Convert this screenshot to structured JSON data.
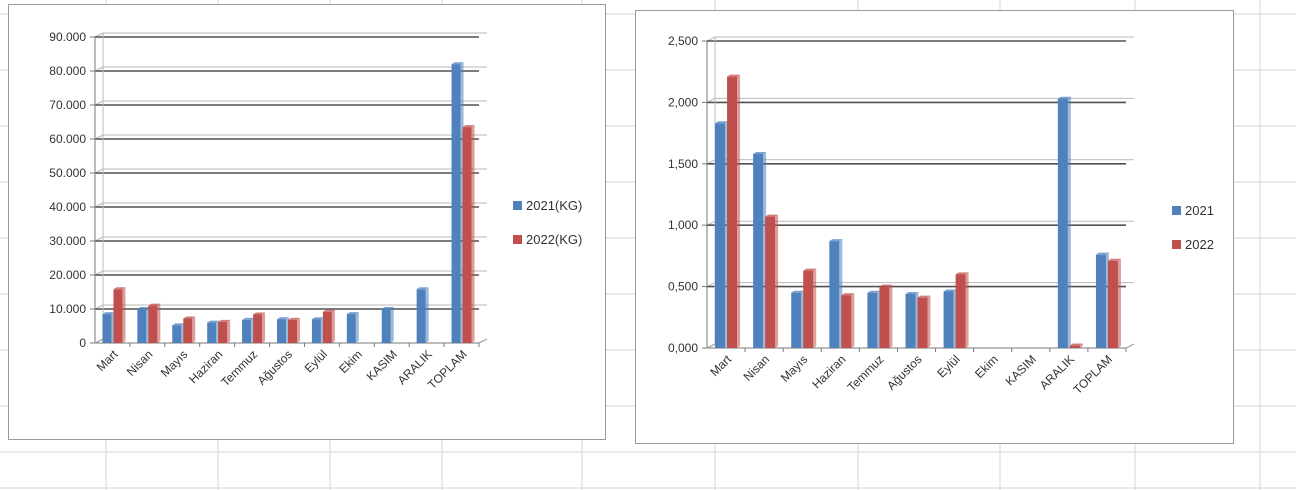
{
  "colors": {
    "series1": "#4f81bd",
    "series2": "#c0504d"
  },
  "chart_data": [
    {
      "type": "bar",
      "categories": [
        "Mart",
        "Nisan",
        "Mayıs",
        "Haziran",
        "Temmuz",
        "Ağustos",
        "Eylül",
        "Ekim",
        "KASIM",
        "ARALIK",
        "TOPLAM"
      ],
      "series": [
        {
          "name": "2021(KG)",
          "values": [
            8500,
            10000,
            5200,
            6000,
            6800,
            7000,
            7000,
            8500,
            10000,
            15800,
            82000
          ]
        },
        {
          "name": "2022(KG)",
          "values": [
            15800,
            11000,
            7200,
            6200,
            8400,
            6800,
            9200,
            null,
            null,
            null,
            63500
          ]
        }
      ],
      "yticks": [
        "0",
        "10.000",
        "20.000",
        "30.000",
        "40.000",
        "50.000",
        "60.000",
        "70.000",
        "80.000",
        "90.000"
      ],
      "ylim": [
        0,
        90000
      ],
      "legend_position": "right",
      "grid": true
    },
    {
      "type": "bar",
      "categories": [
        "Mart",
        "Nisan",
        "Mayıs",
        "Haziran",
        "Temmuz",
        "Ağustos",
        "Eylül",
        "Ekim",
        "KASIM",
        "ARALIK",
        "TOPLAM"
      ],
      "series": [
        {
          "name": "2021",
          "values": [
            1.83,
            1.58,
            0.45,
            0.87,
            0.45,
            0.44,
            0.46,
            null,
            null,
            2.03,
            0.76
          ]
        },
        {
          "name": "2022",
          "values": [
            2.21,
            1.07,
            0.63,
            0.43,
            0.5,
            0.41,
            0.6,
            null,
            null,
            0.02,
            0.71
          ]
        }
      ],
      "yticks": [
        "0,000",
        "0,500",
        "1,000",
        "1,500",
        "2,000",
        "2,500"
      ],
      "ylim": [
        0,
        2.5
      ],
      "legend_position": "right",
      "grid": true
    }
  ]
}
